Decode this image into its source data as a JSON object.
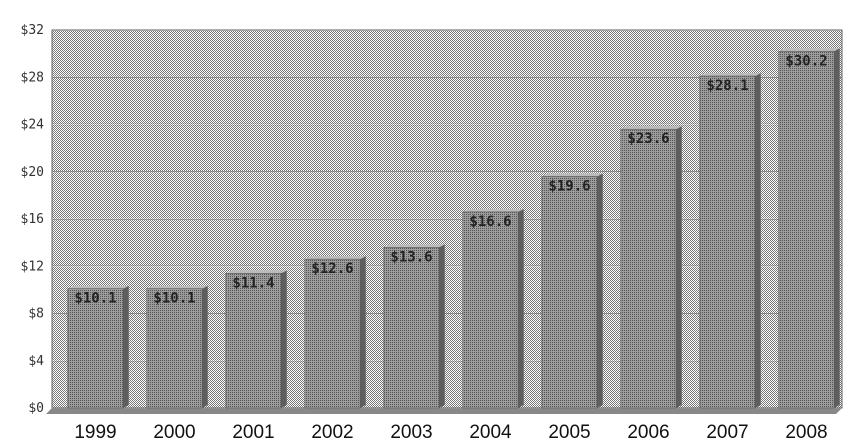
{
  "chart_data": {
    "type": "bar",
    "categories": [
      "1999",
      "2000",
      "2001",
      "2002",
      "2003",
      "2004",
      "2005",
      "2006",
      "2007",
      "2008"
    ],
    "values": [
      10.1,
      10.1,
      11.4,
      12.6,
      13.6,
      16.6,
      19.6,
      23.6,
      28.1,
      30.2
    ],
    "value_labels": [
      "$10.1",
      "$10.1",
      "$11.4",
      "$12.6",
      "$13.6",
      "$16.6",
      "$19.6",
      "$23.6",
      "$28.1",
      "$30.2"
    ],
    "yticks": [
      0,
      4,
      8,
      12,
      16,
      20,
      24,
      28,
      32
    ],
    "ytick_labels": [
      "$0",
      "$4",
      "$8",
      "$12",
      "$16",
      "$20",
      "$24",
      "$28",
      "$32"
    ],
    "ylim": [
      0,
      32
    ],
    "grid": true,
    "colors": {
      "bar": "#8f8f8f",
      "bar_dark": "#5e5e5e",
      "plot_bg": "#d2d2d2",
      "grid": "#9a9a9a"
    }
  }
}
